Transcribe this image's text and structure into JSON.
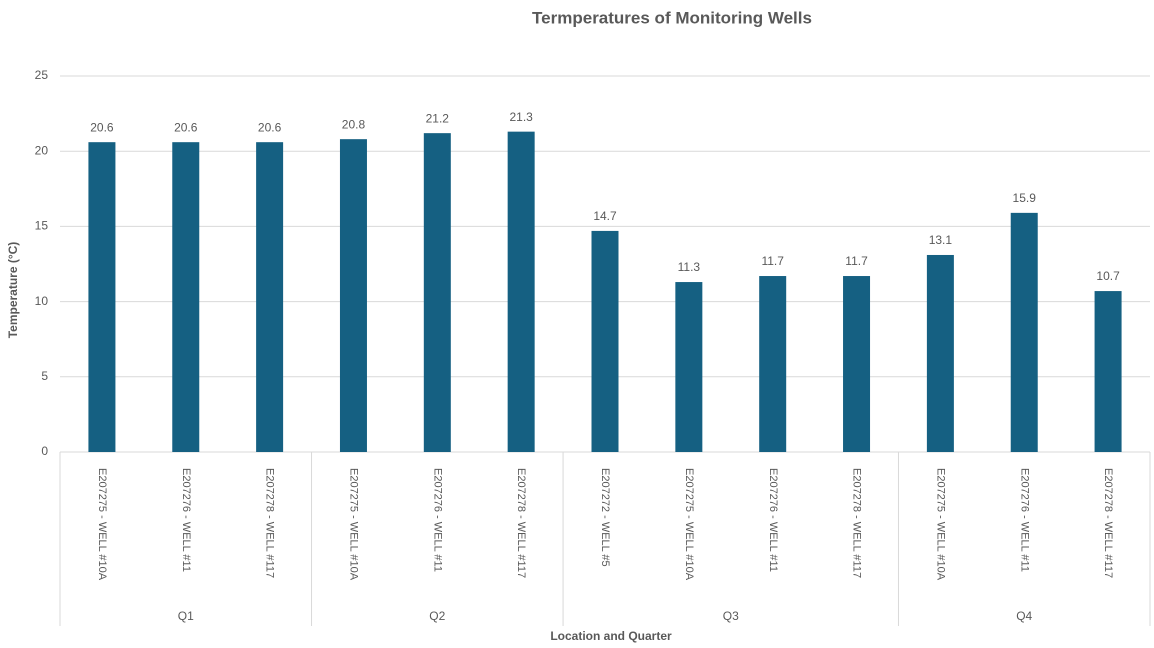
{
  "chart_data": {
    "type": "bar",
    "title": "Termperatures of Monitoring Wells",
    "y_label": "Temperature (°C)",
    "x_label": "Location and Quarter",
    "color": "#156082",
    "grid": true,
    "ylim": [
      0,
      25
    ],
    "yticks": [
      0,
      5,
      10,
      15,
      20,
      25
    ],
    "groups": [
      {
        "name": "Q1",
        "categories": [
          "E207275 - WELL #10A",
          "E207276 - WELL #11",
          "E207278 - WELL #117"
        ],
        "values": [
          20.6,
          20.6,
          20.6
        ]
      },
      {
        "name": "Q2",
        "categories": [
          "E207275 - WELL #10A",
          "E207276 - WELL #11",
          "E207278 - WELL #117"
        ],
        "values": [
          20.8,
          21.2,
          21.3
        ]
      },
      {
        "name": "Q3",
        "categories": [
          "E207272 - WELL #5",
          "E207275 - WELL #10A",
          "E207276 - WELL #11",
          "E207278 - WELL #117"
        ],
        "values": [
          14.7,
          11.3,
          11.7,
          11.7
        ]
      },
      {
        "name": "Q4",
        "categories": [
          "E207275 - WELL #10A",
          "E207276 - WELL #11",
          "E207278 - WELL #117"
        ],
        "values": [
          13.1,
          15.9,
          10.7
        ]
      }
    ]
  }
}
